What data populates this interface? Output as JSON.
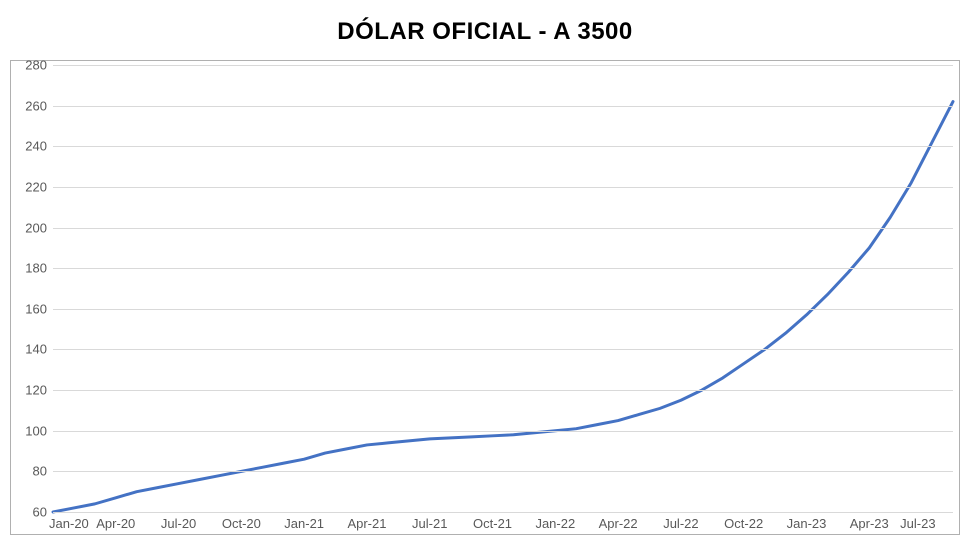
{
  "chart": {
    "type": "line",
    "title": "DÓLAR OFICIAL - A 3500",
    "title_fontsize": 24,
    "background_color": "#ffffff",
    "grid_color": "#d9d9d9",
    "border_color": "#b0b0b0",
    "axis_label_color": "#595959",
    "axis_label_fontsize": 13,
    "line_color": "#4472c4",
    "line_width": 3,
    "ylim": [
      60,
      280
    ],
    "ytick_step": 20,
    "yticks": [
      60,
      80,
      100,
      120,
      140,
      160,
      180,
      200,
      220,
      240,
      260,
      280
    ],
    "x_labels": [
      "Jan-20",
      "Apr-20",
      "Jul-20",
      "Oct-20",
      "Jan-21",
      "Apr-21",
      "Jul-21",
      "Oct-21",
      "Jan-22",
      "Apr-22",
      "Jul-22",
      "Oct-22",
      "Jan-23",
      "Apr-23",
      "Jul-23"
    ],
    "series": {
      "name": "Dólar Oficial",
      "data": [
        {
          "x": 0,
          "y": 60
        },
        {
          "x": 1,
          "y": 62
        },
        {
          "x": 2,
          "y": 64
        },
        {
          "x": 3,
          "y": 67
        },
        {
          "x": 4,
          "y": 70
        },
        {
          "x": 5,
          "y": 72
        },
        {
          "x": 6,
          "y": 74
        },
        {
          "x": 7,
          "y": 76
        },
        {
          "x": 8,
          "y": 78
        },
        {
          "x": 9,
          "y": 80
        },
        {
          "x": 10,
          "y": 82
        },
        {
          "x": 11,
          "y": 84
        },
        {
          "x": 12,
          "y": 86
        },
        {
          "x": 13,
          "y": 89
        },
        {
          "x": 14,
          "y": 91
        },
        {
          "x": 15,
          "y": 93
        },
        {
          "x": 16,
          "y": 94
        },
        {
          "x": 17,
          "y": 95
        },
        {
          "x": 18,
          "y": 96
        },
        {
          "x": 19,
          "y": 96.5
        },
        {
          "x": 20,
          "y": 97
        },
        {
          "x": 21,
          "y": 97.5
        },
        {
          "x": 22,
          "y": 98
        },
        {
          "x": 23,
          "y": 99
        },
        {
          "x": 24,
          "y": 100
        },
        {
          "x": 25,
          "y": 101
        },
        {
          "x": 26,
          "y": 103
        },
        {
          "x": 27,
          "y": 105
        },
        {
          "x": 28,
          "y": 108
        },
        {
          "x": 29,
          "y": 111
        },
        {
          "x": 30,
          "y": 115
        },
        {
          "x": 31,
          "y": 120
        },
        {
          "x": 32,
          "y": 126
        },
        {
          "x": 33,
          "y": 133
        },
        {
          "x": 34,
          "y": 140
        },
        {
          "x": 35,
          "y": 148
        },
        {
          "x": 36,
          "y": 157
        },
        {
          "x": 37,
          "y": 167
        },
        {
          "x": 38,
          "y": 178
        },
        {
          "x": 39,
          "y": 190
        },
        {
          "x": 40,
          "y": 205
        },
        {
          "x": 41,
          "y": 222
        },
        {
          "x": 42,
          "y": 242
        },
        {
          "x": 43,
          "y": 262
        }
      ],
      "x_points_per_label": 3,
      "x_max": 43
    }
  }
}
